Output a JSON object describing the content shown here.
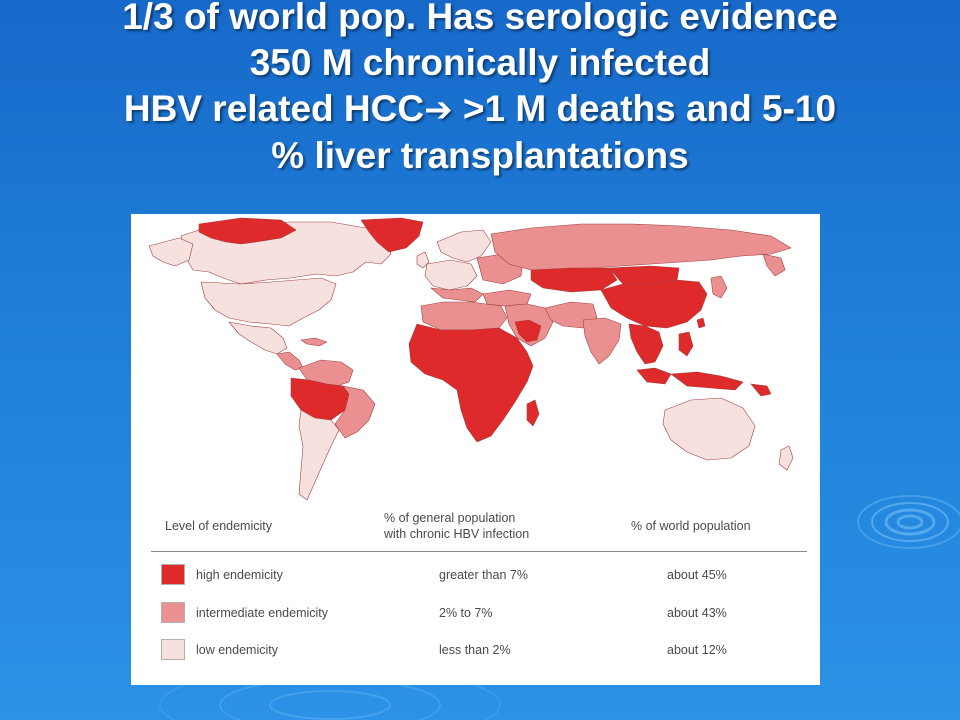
{
  "slide": {
    "title_lines": [
      "1/3 of world pop. Has serologic evidence",
      "350 M chronically infected",
      ">1 M deaths and 5-10",
      "% liver transplantations"
    ],
    "title_line3_prefix": "HBV related HCC",
    "title_arrow_icon": "right-arrow-icon",
    "background_colors": [
      "#1769c9",
      "#2b92e6"
    ]
  },
  "map": {
    "colors": {
      "high": "#de2a2a",
      "intermediate": "#eb9090",
      "low": "#f7e1df",
      "ocean": "#ffffff",
      "border": "#a04040"
    }
  },
  "legend": {
    "headers": {
      "level": "Level of endemicity",
      "population_line1": "% of general population",
      "population_line2": "with chronic HBV infection",
      "world": "% of world population"
    },
    "rows": [
      {
        "level": "high endemicity",
        "population": "greater than 7%",
        "world": "about 45%",
        "color": "#de2a2a"
      },
      {
        "level": "intermediate endemicity",
        "population": "2% to 7%",
        "world": "about 43%",
        "color": "#eb9090"
      },
      {
        "level": "low endemicity",
        "population": "less than 2%",
        "world": "about 12%",
        "color": "#f7e1df"
      }
    ]
  }
}
